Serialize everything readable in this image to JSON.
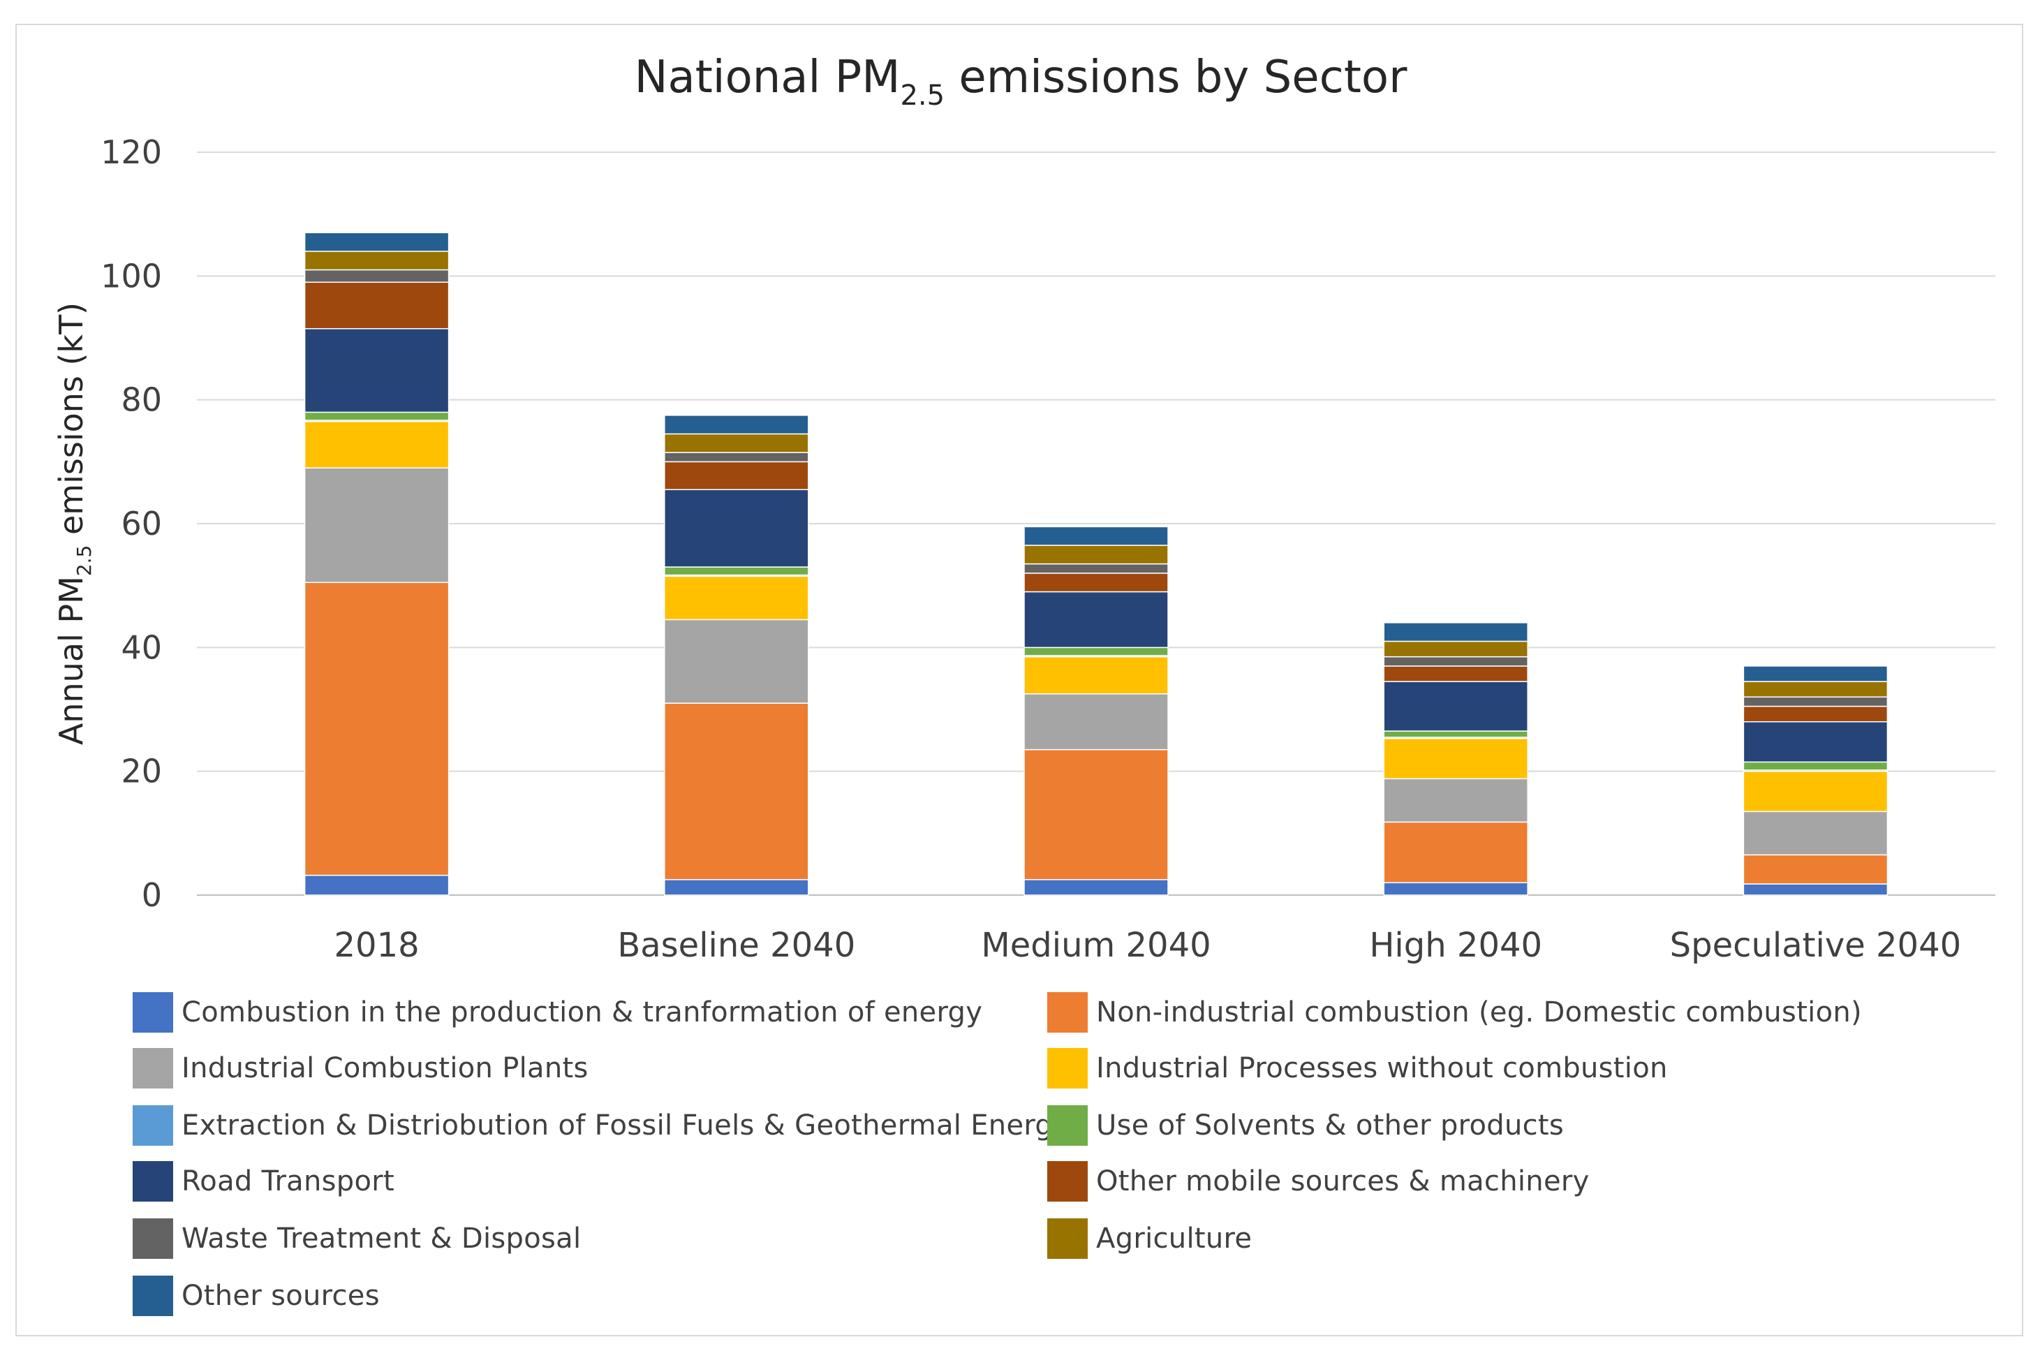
{
  "chart_data": {
    "type": "bar",
    "stacked": true,
    "title": "National PM",
    "title_sub": "2.5",
    "title_suffix": " emissions by Sector",
    "ylabel": "Annual PM",
    "ylabel_sub": "2.5",
    "ylabel_suffix": " emissions (kT)",
    "ylim": [
      0,
      120
    ],
    "yticks": [
      0,
      20,
      40,
      60,
      80,
      100,
      120
    ],
    "grid": true,
    "legend_position": "bottom",
    "categories": [
      "2018",
      "Baseline 2040",
      "Medium 2040",
      "High 2040",
      "Speculative 2040"
    ],
    "series": [
      {
        "name": "Combustion in the production & tranformation of energy",
        "color": "#4472C4",
        "values": [
          3.2,
          2.5,
          2.5,
          2.0,
          1.8
        ]
      },
      {
        "name": "Non-industrial combustion (eg. Domestic combustion)",
        "color": "#ED7D31",
        "values": [
          47.3,
          28.5,
          21.0,
          9.8,
          4.7
        ]
      },
      {
        "name": "Industrial Combustion Plants",
        "color": "#A5A5A5",
        "values": [
          18.5,
          13.5,
          9.0,
          7.0,
          7.0
        ]
      },
      {
        "name": "Industrial Processes without combustion",
        "color": "#FFC000",
        "values": [
          7.5,
          7.0,
          6.0,
          6.5,
          6.5
        ]
      },
      {
        "name": "Extraction & Distriobution of Fossil Fuels & Geothermal Energy",
        "color": "#5B9BD5",
        "values": [
          0.2,
          0.2,
          0.2,
          0.2,
          0.2
        ]
      },
      {
        "name": "Use of Solvents & other products",
        "color": "#70AD47",
        "values": [
          1.3,
          1.3,
          1.3,
          1.0,
          1.3
        ]
      },
      {
        "name": "Road Transport",
        "color": "#264478",
        "values": [
          13.5,
          12.5,
          9.0,
          8.0,
          6.5
        ]
      },
      {
        "name": "Other mobile sources & machinery",
        "color": "#9E480E",
        "values": [
          7.5,
          4.5,
          3.0,
          2.5,
          2.5
        ]
      },
      {
        "name": "Waste Treatment & Disposal",
        "color": "#636363",
        "values": [
          2.0,
          1.5,
          1.5,
          1.5,
          1.5
        ]
      },
      {
        "name": "Agriculture",
        "color": "#997300",
        "values": [
          3.0,
          3.0,
          3.0,
          2.5,
          2.5
        ]
      },
      {
        "name": "Other sources",
        "color": "#255E91",
        "values": [
          3.0,
          3.0,
          3.0,
          3.0,
          2.5
        ]
      }
    ]
  }
}
